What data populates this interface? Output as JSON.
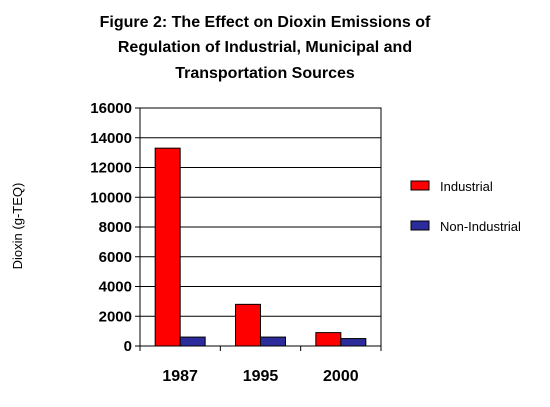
{
  "chart_data": {
    "type": "bar",
    "title_lines": [
      "Figure 2: The Effect on Dioxin Emissions of",
      "Regulation of Industrial, Municipal and",
      "Transportation Sources"
    ],
    "xlabel": "",
    "ylabel": "Dioxin (g-TEQ)",
    "categories": [
      "1987",
      "1995",
      "2000"
    ],
    "ylim": [
      0,
      16000
    ],
    "yticks": [
      0,
      2000,
      4000,
      6000,
      8000,
      10000,
      12000,
      14000,
      16000
    ],
    "grid": true,
    "legend_position": "right",
    "series": [
      {
        "name": "Industrial",
        "values": [
          13300,
          2800,
          900
        ],
        "color": "#ff0000"
      },
      {
        "name": "Non-Industrial",
        "values": [
          600,
          600,
          500
        ],
        "color": "#2b2b9b"
      }
    ]
  }
}
